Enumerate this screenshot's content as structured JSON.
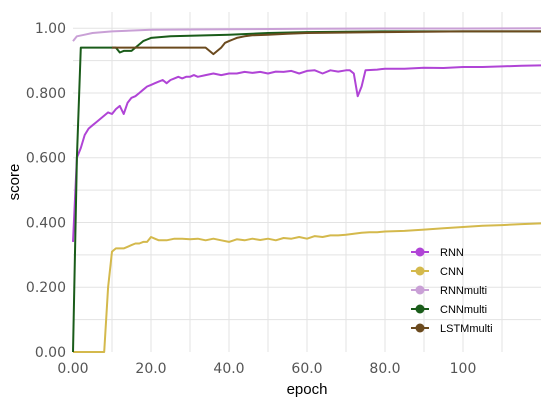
{
  "chart_data": {
    "type": "line",
    "xlabel": "epoch",
    "ylabel": "score",
    "xlim": [
      0,
      120
    ],
    "ylim": [
      0,
      1.05
    ],
    "x_ticks": [
      0,
      20,
      40,
      60,
      80,
      100
    ],
    "x_tick_labels": [
      "0.00",
      "20.0",
      "40.0",
      "60.0",
      "80.0",
      "100"
    ],
    "y_ticks": [
      0,
      0.2,
      0.4,
      0.6,
      0.8,
      1.0
    ],
    "y_tick_labels": [
      "0.00",
      "0.200",
      "0.400",
      "0.600",
      "0.800",
      "1.00"
    ],
    "grid": true,
    "legend_position": "bottom-right",
    "series": [
      {
        "name": "RNN",
        "color": "#b044d6",
        "points": [
          [
            0,
            0.34
          ],
          [
            1,
            0.6
          ],
          [
            2,
            0.63
          ],
          [
            3,
            0.67
          ],
          [
            4,
            0.69
          ],
          [
            5,
            0.7
          ],
          [
            6,
            0.71
          ],
          [
            7,
            0.72
          ],
          [
            8,
            0.73
          ],
          [
            9,
            0.74
          ],
          [
            10,
            0.735
          ],
          [
            11,
            0.75
          ],
          [
            12,
            0.76
          ],
          [
            13,
            0.735
          ],
          [
            14,
            0.77
          ],
          [
            15,
            0.785
          ],
          [
            16,
            0.79
          ],
          [
            17,
            0.8
          ],
          [
            18,
            0.81
          ],
          [
            19,
            0.82
          ],
          [
            20,
            0.825
          ],
          [
            21,
            0.83
          ],
          [
            22,
            0.835
          ],
          [
            23,
            0.84
          ],
          [
            24,
            0.83
          ],
          [
            25,
            0.84
          ],
          [
            26,
            0.845
          ],
          [
            27,
            0.85
          ],
          [
            28,
            0.845
          ],
          [
            29,
            0.85
          ],
          [
            30,
            0.85
          ],
          [
            31,
            0.855
          ],
          [
            32,
            0.85
          ],
          [
            34,
            0.855
          ],
          [
            36,
            0.86
          ],
          [
            38,
            0.855
          ],
          [
            40,
            0.86
          ],
          [
            42,
            0.86
          ],
          [
            44,
            0.865
          ],
          [
            46,
            0.862
          ],
          [
            48,
            0.865
          ],
          [
            50,
            0.86
          ],
          [
            52,
            0.866
          ],
          [
            54,
            0.865
          ],
          [
            56,
            0.868
          ],
          [
            58,
            0.86
          ],
          [
            60,
            0.868
          ],
          [
            62,
            0.87
          ],
          [
            64,
            0.86
          ],
          [
            66,
            0.87
          ],
          [
            68,
            0.866
          ],
          [
            70,
            0.87
          ],
          [
            71,
            0.87
          ],
          [
            72,
            0.86
          ],
          [
            73,
            0.79
          ],
          [
            74,
            0.82
          ],
          [
            75,
            0.87
          ],
          [
            78,
            0.872
          ],
          [
            80,
            0.875
          ],
          [
            85,
            0.875
          ],
          [
            90,
            0.878
          ],
          [
            95,
            0.877
          ],
          [
            100,
            0.88
          ],
          [
            105,
            0.88
          ],
          [
            110,
            0.882
          ],
          [
            115,
            0.884
          ],
          [
            120,
            0.885
          ]
        ]
      },
      {
        "name": "CNN",
        "color": "#d4b94c",
        "points": [
          [
            0,
            0
          ],
          [
            8,
            0
          ],
          [
            9,
            0.2
          ],
          [
            10,
            0.31
          ],
          [
            11,
            0.32
          ],
          [
            12,
            0.32
          ],
          [
            13,
            0.32
          ],
          [
            14,
            0.325
          ],
          [
            15,
            0.33
          ],
          [
            16,
            0.335
          ],
          [
            17,
            0.335
          ],
          [
            18,
            0.34
          ],
          [
            19,
            0.34
          ],
          [
            20,
            0.355
          ],
          [
            21,
            0.35
          ],
          [
            22,
            0.345
          ],
          [
            24,
            0.345
          ],
          [
            26,
            0.35
          ],
          [
            28,
            0.35
          ],
          [
            30,
            0.348
          ],
          [
            32,
            0.35
          ],
          [
            34,
            0.345
          ],
          [
            36,
            0.35
          ],
          [
            38,
            0.345
          ],
          [
            40,
            0.34
          ],
          [
            42,
            0.348
          ],
          [
            44,
            0.345
          ],
          [
            46,
            0.35
          ],
          [
            48,
            0.346
          ],
          [
            50,
            0.35
          ],
          [
            52,
            0.345
          ],
          [
            54,
            0.352
          ],
          [
            56,
            0.35
          ],
          [
            58,
            0.355
          ],
          [
            60,
            0.35
          ],
          [
            62,
            0.358
          ],
          [
            64,
            0.355
          ],
          [
            66,
            0.36
          ],
          [
            68,
            0.36
          ],
          [
            70,
            0.362
          ],
          [
            72,
            0.365
          ],
          [
            74,
            0.368
          ],
          [
            76,
            0.37
          ],
          [
            78,
            0.37
          ],
          [
            80,
            0.372
          ],
          [
            85,
            0.374
          ],
          [
            90,
            0.378
          ],
          [
            95,
            0.382
          ],
          [
            100,
            0.386
          ],
          [
            105,
            0.39
          ],
          [
            110,
            0.392
          ],
          [
            115,
            0.395
          ],
          [
            120,
            0.397
          ]
        ]
      },
      {
        "name": "RNNmulti",
        "color": "#c9a0d6",
        "points": [
          [
            0,
            0.96
          ],
          [
            1,
            0.975
          ],
          [
            3,
            0.98
          ],
          [
            5,
            0.985
          ],
          [
            10,
            0.99
          ],
          [
            20,
            0.995
          ],
          [
            40,
            0.997
          ],
          [
            60,
            0.998
          ],
          [
            80,
            0.999
          ],
          [
            100,
            0.999
          ],
          [
            120,
            1.0
          ]
        ]
      },
      {
        "name": "CNNmulti",
        "color": "#1a5c1a",
        "points": [
          [
            0,
            0
          ],
          [
            1,
            0.6
          ],
          [
            2,
            0.94
          ],
          [
            11,
            0.94
          ],
          [
            12,
            0.925
          ],
          [
            13,
            0.93
          ],
          [
            15,
            0.93
          ],
          [
            16,
            0.94
          ],
          [
            17,
            0.95
          ],
          [
            18,
            0.96
          ],
          [
            19,
            0.965
          ],
          [
            20,
            0.97
          ],
          [
            25,
            0.975
          ],
          [
            35,
            0.978
          ],
          [
            40,
            0.98
          ],
          [
            50,
            0.985
          ],
          [
            60,
            0.988
          ],
          [
            80,
            0.99
          ],
          [
            100,
            0.99
          ],
          [
            120,
            0.99
          ]
        ]
      },
      {
        "name": "LSTMmulti",
        "color": "#6b4a1e",
        "points": [
          [
            10,
            0.94
          ],
          [
            34,
            0.94
          ],
          [
            35,
            0.93
          ],
          [
            36,
            0.92
          ],
          [
            37,
            0.93
          ],
          [
            38,
            0.94
          ],
          [
            39,
            0.955
          ],
          [
            40,
            0.96
          ],
          [
            41,
            0.965
          ],
          [
            42,
            0.97
          ],
          [
            44,
            0.975
          ],
          [
            46,
            0.978
          ],
          [
            50,
            0.98
          ],
          [
            55,
            0.983
          ],
          [
            60,
            0.985
          ],
          [
            80,
            0.988
          ],
          [
            100,
            0.99
          ],
          [
            120,
            0.99
          ]
        ]
      }
    ]
  }
}
